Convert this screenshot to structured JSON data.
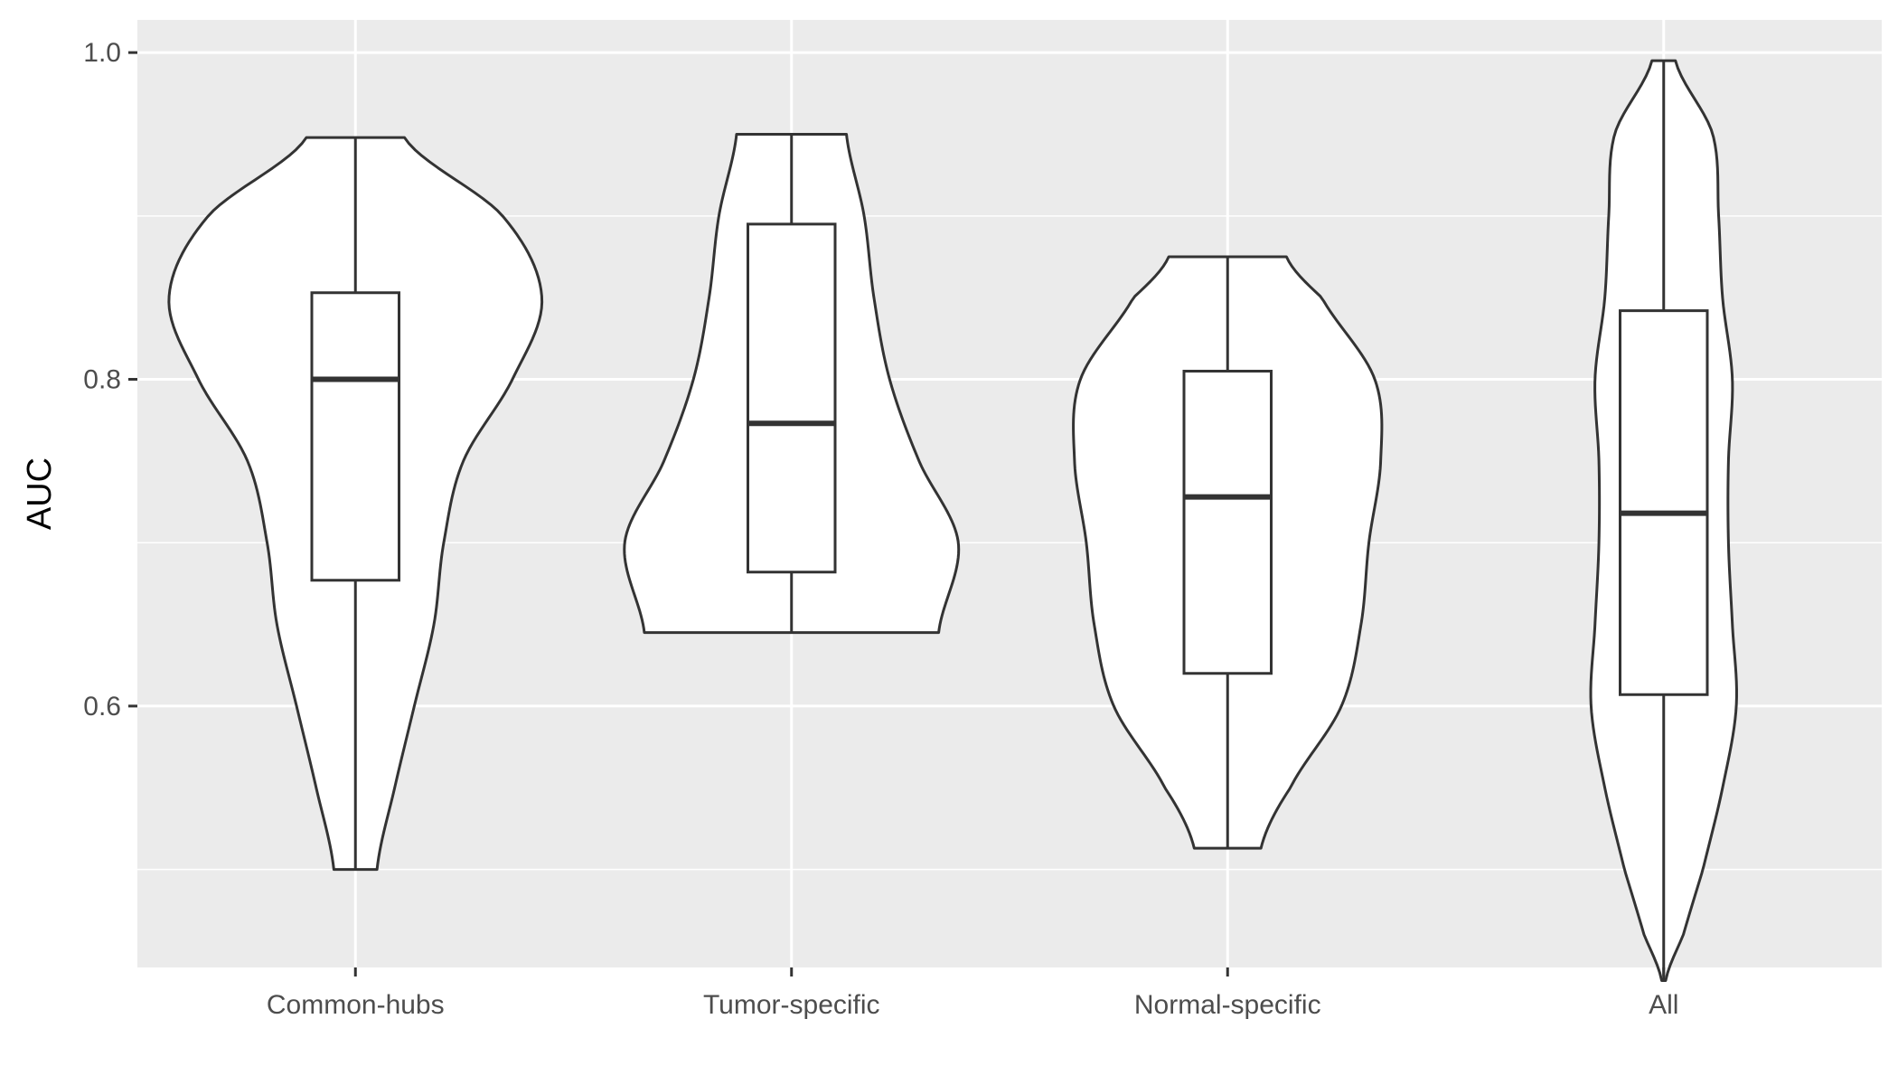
{
  "chart_data": {
    "type": "violin",
    "title": "",
    "xlabel": "",
    "ylabel": "AUC",
    "ylim": [
      0.44,
      1.02
    ],
    "yticks": [
      0.6,
      0.8,
      1.0
    ],
    "ytick_labels": [
      "0.6",
      "0.8",
      "1.0"
    ],
    "grid": true,
    "panel_background": "#ebebeb",
    "outline_color": "#333333",
    "categories": [
      "Common-hubs",
      "Tumor-specific",
      "Normal-specific",
      "All"
    ],
    "groups": [
      {
        "name": "Common-hubs",
        "min": 0.5,
        "q1": 0.677,
        "median": 0.8,
        "q3": 0.853,
        "max": 0.948,
        "density_profile": [
          [
            0.5,
            0.11
          ],
          [
            0.55,
            0.2
          ],
          [
            0.6,
            0.3
          ],
          [
            0.65,
            0.4
          ],
          [
            0.7,
            0.45
          ],
          [
            0.75,
            0.55
          ],
          [
            0.8,
            0.8
          ],
          [
            0.85,
            0.95
          ],
          [
            0.9,
            0.75
          ],
          [
            0.948,
            0.25
          ]
        ]
      },
      {
        "name": "Tumor-specific",
        "min": 0.645,
        "q1": 0.682,
        "median": 0.773,
        "q3": 0.895,
        "max": 0.95,
        "density_profile": [
          [
            0.645,
            0.75
          ],
          [
            0.7,
            0.85
          ],
          [
            0.75,
            0.65
          ],
          [
            0.8,
            0.5
          ],
          [
            0.85,
            0.42
          ],
          [
            0.9,
            0.37
          ],
          [
            0.95,
            0.28
          ]
        ]
      },
      {
        "name": "Normal-specific",
        "min": 0.513,
        "q1": 0.62,
        "median": 0.728,
        "q3": 0.805,
        "max": 0.875,
        "density_profile": [
          [
            0.513,
            0.17
          ],
          [
            0.55,
            0.32
          ],
          [
            0.6,
            0.58
          ],
          [
            0.65,
            0.68
          ],
          [
            0.7,
            0.72
          ],
          [
            0.75,
            0.78
          ],
          [
            0.8,
            0.75
          ],
          [
            0.85,
            0.48
          ],
          [
            0.875,
            0.3
          ]
        ]
      },
      {
        "name": "All",
        "min": 0.432,
        "q1": 0.607,
        "median": 0.718,
        "q3": 0.842,
        "max": 0.995,
        "density_profile": [
          [
            0.432,
            0.01
          ],
          [
            0.46,
            0.1
          ],
          [
            0.5,
            0.2
          ],
          [
            0.55,
            0.3
          ],
          [
            0.6,
            0.37
          ],
          [
            0.65,
            0.35
          ],
          [
            0.7,
            0.33
          ],
          [
            0.75,
            0.33
          ],
          [
            0.8,
            0.35
          ],
          [
            0.85,
            0.3
          ],
          [
            0.9,
            0.28
          ],
          [
            0.95,
            0.25
          ],
          [
            0.995,
            0.06
          ]
        ]
      }
    ]
  }
}
